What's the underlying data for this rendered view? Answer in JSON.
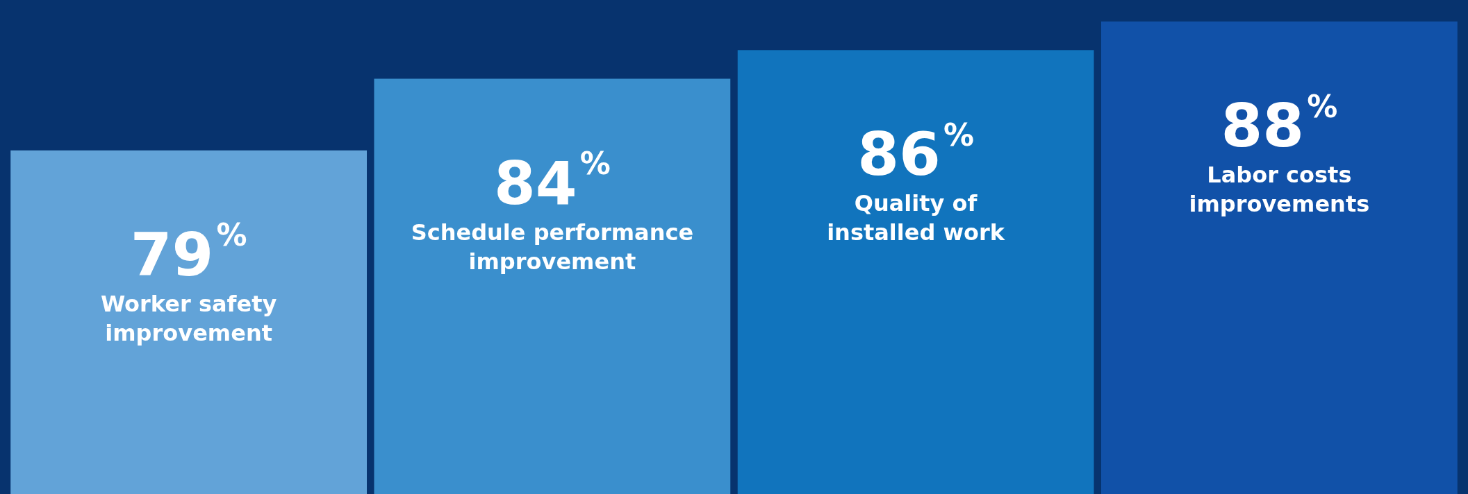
{
  "chart_data": {
    "type": "bar",
    "categories": [
      "Worker safety\nimprovement",
      "Schedule performance\nimprovement",
      "Quality of\ninstalled work",
      "Labor costs\nimprovements"
    ],
    "values": [
      79,
      84,
      86,
      88
    ],
    "colors": [
      "#62a3d8",
      "#3a8fcd",
      "#1174bd",
      "#1151a8"
    ],
    "value_labels": [
      "79%",
      "84%",
      "86%",
      "88%"
    ],
    "ylim": [
      55,
      88
    ]
  }
}
